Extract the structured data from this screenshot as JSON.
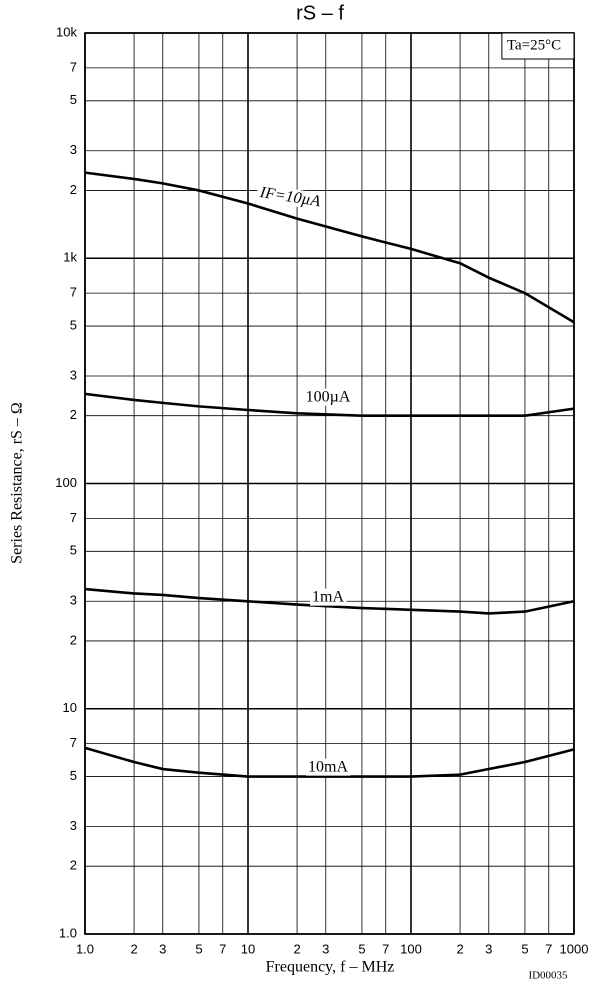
{
  "chart_data": {
    "type": "line",
    "title": "rS – f",
    "x_label": "Frequency, f – MHz",
    "y_label": "Series Resistance, rS – Ω",
    "annotation": "Ta=25°C",
    "figure_id": "ID00035",
    "log_x": true,
    "log_y": true,
    "grid": true,
    "xlim": [
      1,
      1000
    ],
    "ylim": [
      1,
      10000
    ],
    "xticks": [
      {
        "value": 1,
        "label": "1.0"
      },
      2,
      3,
      5,
      7,
      10,
      {
        "value": 20,
        "label": "2"
      },
      {
        "value": 30,
        "label": "3"
      },
      {
        "value": 50,
        "label": "5"
      },
      {
        "value": 70,
        "label": "7"
      },
      100,
      {
        "value": 200,
        "label": "2"
      },
      {
        "value": 300,
        "label": "3"
      },
      {
        "value": 500,
        "label": "5"
      },
      {
        "value": 700,
        "label": "7"
      },
      1000
    ],
    "yticks": [
      {
        "value": 1,
        "label": "1.0"
      },
      2,
      3,
      5,
      7,
      10,
      {
        "value": 20,
        "label": "2"
      },
      {
        "value": 30,
        "label": "3"
      },
      {
        "value": 50,
        "label": "5"
      },
      {
        "value": 70,
        "label": "7"
      },
      100,
      {
        "value": 200,
        "label": "2"
      },
      {
        "value": 300,
        "label": "3"
      },
      {
        "value": 500,
        "label": "5"
      },
      {
        "value": 700,
        "label": "7"
      },
      {
        "value": 1000,
        "label": "1k"
      },
      {
        "value": 2000,
        "label": "2"
      },
      {
        "value": 3000,
        "label": "3"
      },
      {
        "value": 5000,
        "label": "5"
      },
      {
        "value": 7000,
        "label": "7"
      },
      {
        "value": 10000,
        "label": "10k"
      }
    ],
    "x": [
      1,
      2,
      3,
      5,
      10,
      20,
      50,
      100,
      200,
      300,
      500,
      1000
    ],
    "series": [
      {
        "name": "IF=10µA",
        "color": "#000000",
        "values": [
          2400,
          2250,
          2150,
          2000,
          1750,
          1500,
          1250,
          1100,
          950,
          820,
          700,
          520
        ]
      },
      {
        "name": "100µA",
        "color": "#000000",
        "values": [
          250,
          235,
          228,
          220,
          212,
          205,
          200,
          200,
          200,
          200,
          200,
          215
        ]
      },
      {
        "name": "1mA",
        "color": "#000000",
        "values": [
          34,
          32.5,
          32,
          31,
          30,
          29,
          28,
          27.5,
          27,
          26.5,
          27,
          30
        ]
      },
      {
        "name": "10mA",
        "color": "#000000",
        "values": [
          6.7,
          5.8,
          5.4,
          5.2,
          5.0,
          5.0,
          5.0,
          5.0,
          5.1,
          5.4,
          5.8,
          6.6
        ]
      }
    ]
  }
}
